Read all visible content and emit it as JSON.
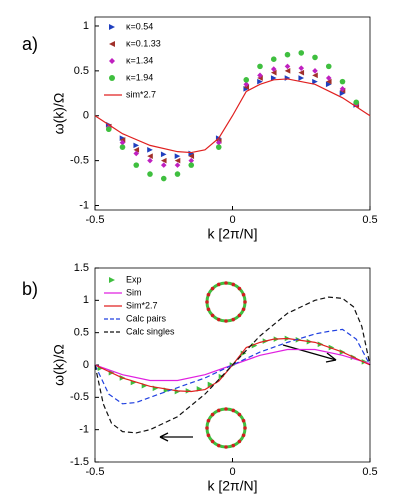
{
  "chart_data": [
    {
      "type": "scatter",
      "panel": "a)",
      "xlabel": "k [2π/N]",
      "ylabel": "ω(k)/Ω",
      "xlim": [
        -0.5,
        0.5
      ],
      "xticks": [
        -0.5,
        0,
        0.5
      ],
      "ylim": [
        -1.05,
        1.1
      ],
      "yticks": [
        -1,
        -0.5,
        0,
        0.5,
        1
      ],
      "legend": "upper-left",
      "series": [
        {
          "name": "κ=0.54",
          "color": "#1f3fbf",
          "marker": "triangle-right",
          "x": [
            -0.45,
            -0.4,
            -0.35,
            -0.3,
            -0.25,
            -0.2,
            -0.15,
            -0.05,
            0.05,
            0.1,
            0.15,
            0.2,
            0.25,
            0.3,
            0.35,
            0.4,
            0.45
          ],
          "values": [
            -0.1,
            -0.25,
            -0.33,
            -0.38,
            -0.43,
            -0.45,
            -0.42,
            -0.25,
            0.3,
            0.38,
            0.42,
            0.42,
            0.42,
            0.38,
            0.35,
            0.25,
            0.12
          ]
        },
        {
          "name": "κ=0.1.33",
          "color": "#a0302a",
          "marker": "triangle-left",
          "x": [
            -0.45,
            -0.4,
            -0.35,
            -0.3,
            -0.25,
            -0.2,
            -0.15,
            -0.05,
            0.05,
            0.1,
            0.15,
            0.2,
            0.25,
            0.3,
            0.35,
            0.4,
            0.45
          ],
          "values": [
            -0.12,
            -0.27,
            -0.38,
            -0.45,
            -0.5,
            -0.5,
            -0.45,
            -0.28,
            0.32,
            0.42,
            0.48,
            0.5,
            0.48,
            0.45,
            0.38,
            0.28,
            0.12
          ]
        },
        {
          "name": "κ=1.34",
          "color": "#c020c0",
          "marker": "diamond",
          "x": [
            -0.45,
            -0.4,
            -0.35,
            -0.3,
            -0.25,
            -0.2,
            -0.15,
            -0.05,
            0.05,
            0.1,
            0.15,
            0.2,
            0.25,
            0.3,
            0.35,
            0.4,
            0.45
          ],
          "values": [
            -0.13,
            -0.3,
            -0.42,
            -0.5,
            -0.55,
            -0.55,
            -0.5,
            -0.3,
            0.35,
            0.45,
            0.52,
            0.55,
            0.53,
            0.5,
            0.42,
            0.3,
            0.13
          ]
        },
        {
          "name": "κ=1.94",
          "color": "#3fbf3f",
          "marker": "circle",
          "x": [
            -0.45,
            -0.4,
            -0.35,
            -0.3,
            -0.25,
            -0.2,
            -0.15,
            -0.05,
            0.05,
            0.1,
            0.15,
            0.2,
            0.25,
            0.3,
            0.35,
            0.4,
            0.45
          ],
          "values": [
            -0.15,
            -0.35,
            -0.55,
            -0.65,
            -0.7,
            -0.65,
            -0.55,
            -0.35,
            0.4,
            0.55,
            0.63,
            0.68,
            0.7,
            0.65,
            0.55,
            0.38,
            0.15
          ]
        },
        {
          "name": "sim*2.7",
          "color": "#e02020",
          "style": "solid",
          "x": [
            -0.5,
            -0.4,
            -0.3,
            -0.2,
            -0.15,
            -0.1,
            -0.05,
            0,
            0.05,
            0.1,
            0.15,
            0.2,
            0.3,
            0.4,
            0.5
          ],
          "values": [
            0,
            -0.2,
            -0.33,
            -0.4,
            -0.41,
            -0.38,
            -0.25,
            0,
            0.27,
            0.35,
            0.4,
            0.41,
            0.35,
            0.2,
            0
          ]
        }
      ]
    },
    {
      "type": "scatter",
      "panel": "b)",
      "xlabel": "k [2π/N]",
      "ylabel": "ω(k)/Ω",
      "xlim": [
        -0.5,
        0.5
      ],
      "xticks": [
        -0.5,
        0,
        0.5
      ],
      "ylim": [
        -1.5,
        1.5
      ],
      "yticks": [
        -1.5,
        -1,
        -0.5,
        0,
        0.5,
        1,
        1.5
      ],
      "legend": "upper-left",
      "series": [
        {
          "name": "Exp",
          "color": "#3fbf3f",
          "marker": "triangle-right",
          "x": [
            -0.48,
            -0.44,
            -0.4,
            -0.36,
            -0.32,
            -0.28,
            -0.24,
            -0.2,
            -0.16,
            -0.12,
            -0.08,
            -0.04,
            0,
            0.04,
            0.08,
            0.12,
            0.16,
            0.2,
            0.24,
            0.28,
            0.32,
            0.36,
            0.4,
            0.44,
            0.48
          ],
          "values": [
            -0.05,
            -0.12,
            -0.2,
            -0.27,
            -0.32,
            -0.36,
            -0.39,
            -0.41,
            -0.4,
            -0.37,
            -0.3,
            -0.18,
            0,
            0.18,
            0.3,
            0.37,
            0.4,
            0.41,
            0.39,
            0.36,
            0.32,
            0.27,
            0.2,
            0.12,
            0.05
          ]
        },
        {
          "name": "Sim",
          "color": "#e020e0",
          "style": "solid",
          "x": [
            -0.5,
            -0.4,
            -0.3,
            -0.2,
            -0.1,
            0,
            0.1,
            0.2,
            0.3,
            0.4,
            0.5
          ],
          "values": [
            0,
            -0.15,
            -0.24,
            -0.24,
            -0.15,
            0,
            0.15,
            0.24,
            0.24,
            0.15,
            0.02
          ]
        },
        {
          "name": "Sim*2.7",
          "color": "#e02020",
          "style": "solid",
          "x": [
            -0.5,
            -0.4,
            -0.3,
            -0.2,
            -0.15,
            -0.1,
            -0.05,
            0,
            0.05,
            0.1,
            0.15,
            0.2,
            0.3,
            0.4,
            0.5
          ],
          "values": [
            0,
            -0.2,
            -0.33,
            -0.4,
            -0.41,
            -0.38,
            -0.25,
            0,
            0.27,
            0.35,
            0.4,
            0.41,
            0.35,
            0.2,
            0
          ]
        },
        {
          "name": "Calc pairs",
          "color": "#2040e0",
          "style": "dashed",
          "x": [
            -0.5,
            -0.45,
            -0.4,
            -0.35,
            -0.3,
            -0.2,
            -0.1,
            0,
            0.1,
            0.2,
            0.3,
            0.35,
            0.4,
            0.45,
            0.5
          ],
          "values": [
            0,
            -0.45,
            -0.6,
            -0.58,
            -0.5,
            -0.35,
            -0.2,
            0,
            0.2,
            0.35,
            0.48,
            0.52,
            0.55,
            0.4,
            0
          ]
        },
        {
          "name": "Calc singles",
          "color": "#111111",
          "style": "dashed",
          "x": [
            -0.5,
            -0.47,
            -0.44,
            -0.4,
            -0.35,
            -0.3,
            -0.2,
            -0.1,
            0,
            0.1,
            0.2,
            0.3,
            0.35,
            0.4,
            0.44,
            0.47,
            0.5
          ],
          "values": [
            0,
            -0.6,
            -0.9,
            -1.03,
            -1.05,
            -1,
            -0.8,
            -0.45,
            0,
            0.45,
            0.8,
            1,
            1.05,
            1.03,
            0.9,
            0.6,
            0
          ]
        }
      ]
    }
  ]
}
